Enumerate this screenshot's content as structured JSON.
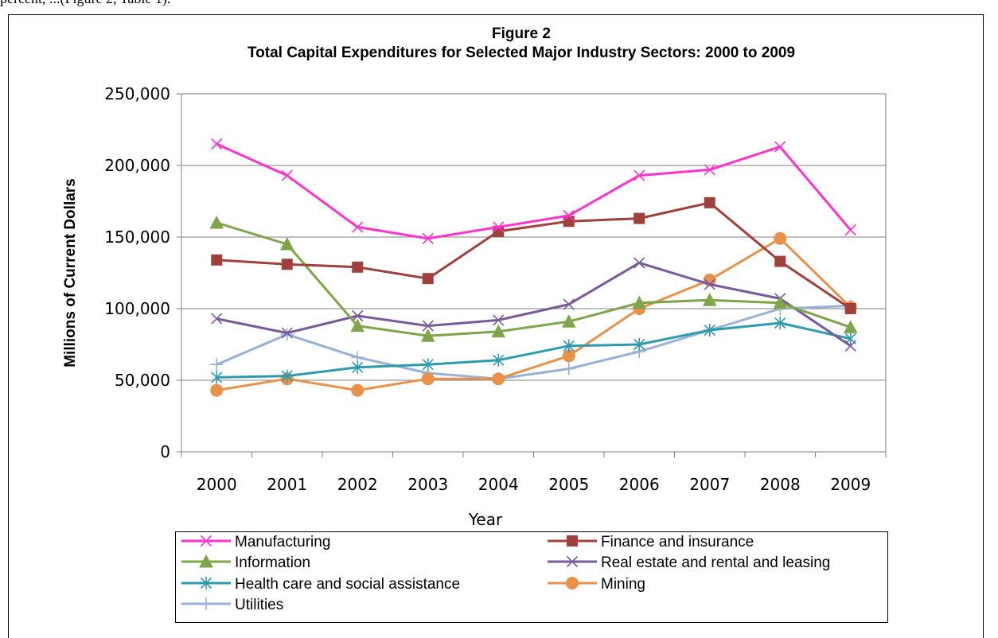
{
  "page": {
    "top_text": "percent, ...(Figure 2, Table 1)."
  },
  "chart_data": {
    "type": "line",
    "title": "Figure 2",
    "subtitle": "Total Capital Expenditures for Selected Major Industry Sectors: 2000 to  2009",
    "xlabel": "Year",
    "ylabel": "Millions of Current  Dollars",
    "x": [
      "2000",
      "2001",
      "2002",
      "2003",
      "2004",
      "2005",
      "2006",
      "2007",
      "2008",
      "2009"
    ],
    "ylim": [
      0,
      250000
    ],
    "yticks": [
      0,
      50000,
      100000,
      150000,
      200000,
      250000
    ],
    "ytick_labels": [
      "0",
      "50,000",
      "100,000",
      "150,000",
      "200,000",
      "250,000"
    ],
    "grid": "horizontal",
    "legend_position": "bottom",
    "series": [
      {
        "name": "Manufacturing",
        "color": "#FF33CC",
        "marker": "x",
        "values": [
          215000,
          193000,
          157000,
          149000,
          157000,
          165000,
          193000,
          197000,
          213000,
          155000
        ]
      },
      {
        "name": "Finance and insurance",
        "color": "#A0403C",
        "marker": "square",
        "values": [
          134000,
          131000,
          129000,
          121000,
          154000,
          161000,
          163000,
          174000,
          133000,
          100000
        ]
      },
      {
        "name": "Information",
        "color": "#7FA54A",
        "marker": "triangle",
        "values": [
          160000,
          145000,
          88000,
          81000,
          84000,
          91000,
          104000,
          106000,
          104000,
          87000
        ]
      },
      {
        "name": "Real estate and rental and leasing",
        "color": "#7A5A9A",
        "marker": "x",
        "values": [
          93000,
          83000,
          95000,
          88000,
          92000,
          103000,
          132000,
          117000,
          107000,
          74000
        ]
      },
      {
        "name": "Health care and social assistance",
        "color": "#2E9AAD",
        "marker": "star",
        "values": [
          52000,
          53000,
          59000,
          61000,
          64000,
          74000,
          75000,
          85000,
          90000,
          79000
        ]
      },
      {
        "name": "Mining",
        "color": "#E8914A",
        "marker": "circle",
        "values": [
          43000,
          51000,
          43000,
          51000,
          51000,
          67000,
          100000,
          120000,
          149000,
          101000
        ]
      },
      {
        "name": "Utilities",
        "color": "#99B0D8",
        "marker": "plus",
        "values": [
          61000,
          82000,
          66000,
          55000,
          51000,
          58000,
          70000,
          85000,
          100000,
          102000
        ]
      }
    ]
  }
}
